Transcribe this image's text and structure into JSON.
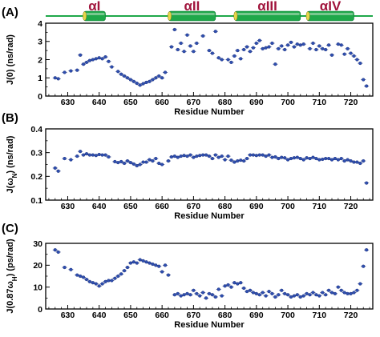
{
  "figure": {
    "panel_letters": [
      "(A)",
      "(B)",
      "(C)"
    ]
  },
  "colors": {
    "marker": "#2f4fb0",
    "marker_edge": "#1a2f78",
    "helix_fill": "#1fa84a",
    "helix_band": "#8fd0a0",
    "helix_end": "#e6d64a",
    "helix_label": "#a0143c",
    "axis": "#000000"
  },
  "secondary_structure": {
    "helices": [
      {
        "label": "αI",
        "start": 635,
        "end": 642
      },
      {
        "label": "αII",
        "start": 662,
        "end": 677
      },
      {
        "label": "αIII",
        "start": 683,
        "end": 704
      },
      {
        "label": "αIV",
        "start": 706,
        "end": 721
      }
    ]
  },
  "chart_data": [
    {
      "type": "scatter",
      "panel": "(A)",
      "xlabel": "Residue Number",
      "ylabel": "J(0) (ns/rad)",
      "xlim": [
        623,
        727
      ],
      "ylim": [
        0,
        4
      ],
      "xticks": [
        630,
        640,
        650,
        660,
        670,
        680,
        690,
        700,
        710,
        720
      ],
      "yticks": [
        0,
        1,
        2,
        3,
        4
      ],
      "ytick_labels": [
        "0",
        "1",
        "2",
        "3",
        "4"
      ],
      "grid": false,
      "points": [
        [
          626,
          1.0
        ],
        [
          627,
          0.95
        ],
        [
          629,
          1.3
        ],
        [
          631,
          1.38
        ],
        [
          633,
          1.42
        ],
        [
          634,
          2.25
        ],
        [
          635,
          1.75
        ],
        [
          636,
          1.85
        ],
        [
          637,
          1.95
        ],
        [
          638,
          2.0
        ],
        [
          639,
          2.05
        ],
        [
          640,
          2.1
        ],
        [
          641,
          2.05
        ],
        [
          642,
          2.15
        ],
        [
          643,
          1.9
        ],
        [
          644,
          1.6
        ],
        [
          646,
          1.35
        ],
        [
          647,
          1.2
        ],
        [
          648,
          1.1
        ],
        [
          649,
          1.0
        ],
        [
          650,
          0.9
        ],
        [
          651,
          0.8
        ],
        [
          652,
          0.7
        ],
        [
          653,
          0.6
        ],
        [
          654,
          0.68
        ],
        [
          655,
          0.75
        ],
        [
          656,
          0.8
        ],
        [
          657,
          0.9
        ],
        [
          658,
          1.0
        ],
        [
          659,
          1.1
        ],
        [
          660,
          1.0
        ],
        [
          661,
          1.3
        ],
        [
          663,
          2.7
        ],
        [
          664,
          3.65
        ],
        [
          665,
          2.55
        ],
        [
          666,
          2.9
        ],
        [
          667,
          2.45
        ],
        [
          668,
          3.35
        ],
        [
          669,
          2.75
        ],
        [
          670,
          2.45
        ],
        [
          671,
          2.9
        ],
        [
          673,
          3.3
        ],
        [
          675,
          2.5
        ],
        [
          676,
          2.35
        ],
        [
          677,
          3.55
        ],
        [
          678,
          2.1
        ],
        [
          679,
          2.0
        ],
        [
          681,
          2.0
        ],
        [
          682,
          1.85
        ],
        [
          683,
          2.2
        ],
        [
          684,
          2.5
        ],
        [
          685,
          2.05
        ],
        [
          686,
          2.55
        ],
        [
          687,
          2.7
        ],
        [
          688,
          2.45
        ],
        [
          689,
          2.65
        ],
        [
          690,
          2.9
        ],
        [
          691,
          3.05
        ],
        [
          692,
          2.6
        ],
        [
          693,
          2.65
        ],
        [
          694,
          2.7
        ],
        [
          695,
          2.9
        ],
        [
          696,
          1.75
        ],
        [
          697,
          2.6
        ],
        [
          698,
          2.75
        ],
        [
          699,
          2.55
        ],
        [
          700,
          2.8
        ],
        [
          701,
          2.95
        ],
        [
          702,
          2.7
        ],
        [
          703,
          2.85
        ],
        [
          704,
          2.8
        ],
        [
          705,
          2.85
        ],
        [
          707,
          2.6
        ],
        [
          708,
          2.9
        ],
        [
          709,
          2.55
        ],
        [
          710,
          2.75
        ],
        [
          711,
          2.6
        ],
        [
          712,
          2.55
        ],
        [
          713,
          2.8
        ],
        [
          714,
          2.25
        ],
        [
          716,
          2.85
        ],
        [
          717,
          2.8
        ],
        [
          718,
          2.3
        ],
        [
          719,
          2.6
        ],
        [
          720,
          2.35
        ],
        [
          721,
          2.2
        ],
        [
          722,
          2.0
        ],
        [
          723,
          1.8
        ],
        [
          724,
          0.9
        ],
        [
          725,
          0.55
        ]
      ]
    },
    {
      "type": "scatter",
      "panel": "(B)",
      "xlabel": "Residue Number",
      "ylabel": "J(ωN) (ns/rad)",
      "ylabel_main": "J(ω",
      "ylabel_sub": "N",
      "ylabel_tail": ") (ns/rad)",
      "xlim": [
        623,
        727
      ],
      "ylim": [
        0.1,
        0.4
      ],
      "xticks": [
        630,
        640,
        650,
        660,
        670,
        680,
        690,
        700,
        710,
        720
      ],
      "yticks": [
        0.1,
        0.2,
        0.3,
        0.4
      ],
      "ytick_labels": [
        "0.1",
        "0.2",
        "0.3",
        "0.4"
      ],
      "grid": false,
      "points": [
        [
          626,
          0.235
        ],
        [
          627,
          0.222
        ],
        [
          629,
          0.275
        ],
        [
          631,
          0.27
        ],
        [
          633,
          0.285
        ],
        [
          634,
          0.305
        ],
        [
          635,
          0.29
        ],
        [
          636,
          0.295
        ],
        [
          637,
          0.29
        ],
        [
          638,
          0.29
        ],
        [
          639,
          0.288
        ],
        [
          640,
          0.292
        ],
        [
          641,
          0.29
        ],
        [
          642,
          0.29
        ],
        [
          643,
          0.282
        ],
        [
          645,
          0.262
        ],
        [
          646,
          0.258
        ],
        [
          647,
          0.262
        ],
        [
          648,
          0.255
        ],
        [
          649,
          0.265
        ],
        [
          650,
          0.258
        ],
        [
          651,
          0.252
        ],
        [
          652,
          0.245
        ],
        [
          653,
          0.25
        ],
        [
          654,
          0.26
        ],
        [
          655,
          0.26
        ],
        [
          656,
          0.27
        ],
        [
          657,
          0.265
        ],
        [
          658,
          0.275
        ],
        [
          659,
          0.255
        ],
        [
          660,
          0.25
        ],
        [
          662,
          0.265
        ],
        [
          663,
          0.282
        ],
        [
          664,
          0.285
        ],
        [
          665,
          0.28
        ],
        [
          666,
          0.285
        ],
        [
          667,
          0.288
        ],
        [
          668,
          0.285
        ],
        [
          669,
          0.29
        ],
        [
          670,
          0.28
        ],
        [
          671,
          0.285
        ],
        [
          672,
          0.288
        ],
        [
          673,
          0.29
        ],
        [
          674,
          0.29
        ],
        [
          675,
          0.285
        ],
        [
          676,
          0.275
        ],
        [
          677,
          0.29
        ],
        [
          678,
          0.28
        ],
        [
          679,
          0.285
        ],
        [
          680,
          0.27
        ],
        [
          681,
          0.285
        ],
        [
          682,
          0.268
        ],
        [
          683,
          0.26
        ],
        [
          684,
          0.265
        ],
        [
          685,
          0.268
        ],
        [
          686,
          0.265
        ],
        [
          687,
          0.275
        ],
        [
          688,
          0.29
        ],
        [
          689,
          0.29
        ],
        [
          690,
          0.288
        ],
        [
          691,
          0.29
        ],
        [
          692,
          0.29
        ],
        [
          693,
          0.285
        ],
        [
          694,
          0.29
        ],
        [
          695,
          0.28
        ],
        [
          696,
          0.282
        ],
        [
          697,
          0.275
        ],
        [
          698,
          0.28
        ],
        [
          699,
          0.278
        ],
        [
          700,
          0.27
        ],
        [
          701,
          0.275
        ],
        [
          702,
          0.278
        ],
        [
          703,
          0.28
        ],
        [
          704,
          0.275
        ],
        [
          705,
          0.27
        ],
        [
          706,
          0.278
        ],
        [
          707,
          0.275
        ],
        [
          708,
          0.28
        ],
        [
          709,
          0.275
        ],
        [
          710,
          0.27
        ],
        [
          711,
          0.272
        ],
        [
          712,
          0.275
        ],
        [
          713,
          0.275
        ],
        [
          714,
          0.27
        ],
        [
          715,
          0.275
        ],
        [
          716,
          0.27
        ],
        [
          717,
          0.275
        ],
        [
          718,
          0.265
        ],
        [
          719,
          0.27
        ],
        [
          720,
          0.265
        ],
        [
          721,
          0.26
        ],
        [
          722,
          0.26
        ],
        [
          723,
          0.255
        ],
        [
          724,
          0.265
        ],
        [
          725,
          0.172
        ]
      ]
    },
    {
      "type": "scatter",
      "panel": "(C)",
      "xlabel": "Residue Number",
      "ylabel": "J(0.87ωH) (ps/rad)",
      "ylabel_main": "J(0.87ω",
      "ylabel_sub": "H",
      "ylabel_tail": ") (ps/rad)",
      "xlim": [
        623,
        727
      ],
      "ylim": [
        0,
        30
      ],
      "xticks": [
        630,
        640,
        650,
        660,
        670,
        680,
        690,
        700,
        710,
        720
      ],
      "yticks": [
        0,
        10,
        20,
        30
      ],
      "ytick_labels": [
        "0",
        "10",
        "20",
        "30"
      ],
      "grid": false,
      "points": [
        [
          626,
          27.0
        ],
        [
          627,
          26.0
        ],
        [
          629,
          19.0
        ],
        [
          631,
          18.0
        ],
        [
          633,
          15.5
        ],
        [
          634,
          15.0
        ],
        [
          635,
          14.5
        ],
        [
          636,
          13.5
        ],
        [
          637,
          12.5
        ],
        [
          638,
          12.0
        ],
        [
          639,
          11.5
        ],
        [
          640,
          10.5
        ],
        [
          641,
          11.5
        ],
        [
          642,
          12.5
        ],
        [
          643,
          13.0
        ],
        [
          644,
          13.0
        ],
        [
          645,
          14.0
        ],
        [
          646,
          15.0
        ],
        [
          647,
          16.0
        ],
        [
          648,
          17.5
        ],
        [
          649,
          19.0
        ],
        [
          650,
          21.0
        ],
        [
          651,
          21.5
        ],
        [
          652,
          21.0
        ],
        [
          653,
          22.5
        ],
        [
          654,
          22.0
        ],
        [
          655,
          21.5
        ],
        [
          656,
          21.0
        ],
        [
          657,
          20.5
        ],
        [
          658,
          20.0
        ],
        [
          659,
          19.5
        ],
        [
          660,
          17.0
        ],
        [
          661,
          20.0
        ],
        [
          662,
          15.5
        ],
        [
          664,
          6.5
        ],
        [
          665,
          7.0
        ],
        [
          666,
          6.0
        ],
        [
          667,
          6.5
        ],
        [
          668,
          7.0
        ],
        [
          669,
          6.5
        ],
        [
          670,
          8.5
        ],
        [
          671,
          7.0
        ],
        [
          672,
          6.0
        ],
        [
          673,
          7.5
        ],
        [
          674,
          5.0
        ],
        [
          675,
          7.0
        ],
        [
          676,
          6.5
        ],
        [
          677,
          5.5
        ],
        [
          678,
          9.0
        ],
        [
          679,
          6.0
        ],
        [
          680,
          10.5
        ],
        [
          681,
          11.0
        ],
        [
          682,
          10.0
        ],
        [
          683,
          12.0
        ],
        [
          684,
          11.5
        ],
        [
          685,
          12.0
        ],
        [
          686,
          9.5
        ],
        [
          687,
          8.0
        ],
        [
          688,
          8.5
        ],
        [
          689,
          7.5
        ],
        [
          690,
          7.0
        ],
        [
          691,
          6.5
        ],
        [
          692,
          7.5
        ],
        [
          693,
          6.0
        ],
        [
          694,
          8.0
        ],
        [
          695,
          7.0
        ],
        [
          696,
          5.5
        ],
        [
          697,
          6.5
        ],
        [
          698,
          8.5
        ],
        [
          699,
          7.0
        ],
        [
          700,
          6.5
        ],
        [
          701,
          5.5
        ],
        [
          702,
          6.0
        ],
        [
          703,
          6.5
        ],
        [
          704,
          5.5
        ],
        [
          705,
          6.0
        ],
        [
          706,
          7.0
        ],
        [
          707,
          6.5
        ],
        [
          708,
          7.5
        ],
        [
          709,
          6.5
        ],
        [
          710,
          6.0
        ],
        [
          711,
          7.5
        ],
        [
          712,
          6.5
        ],
        [
          713,
          8.5
        ],
        [
          714,
          7.5
        ],
        [
          715,
          7.0
        ],
        [
          716,
          10.0
        ],
        [
          717,
          8.5
        ],
        [
          718,
          7.5
        ],
        [
          719,
          7.0
        ],
        [
          720,
          7.0
        ],
        [
          721,
          7.5
        ],
        [
          722,
          8.5
        ],
        [
          723,
          11.5
        ],
        [
          724,
          19.5
        ],
        [
          725,
          27.0
        ]
      ]
    }
  ]
}
